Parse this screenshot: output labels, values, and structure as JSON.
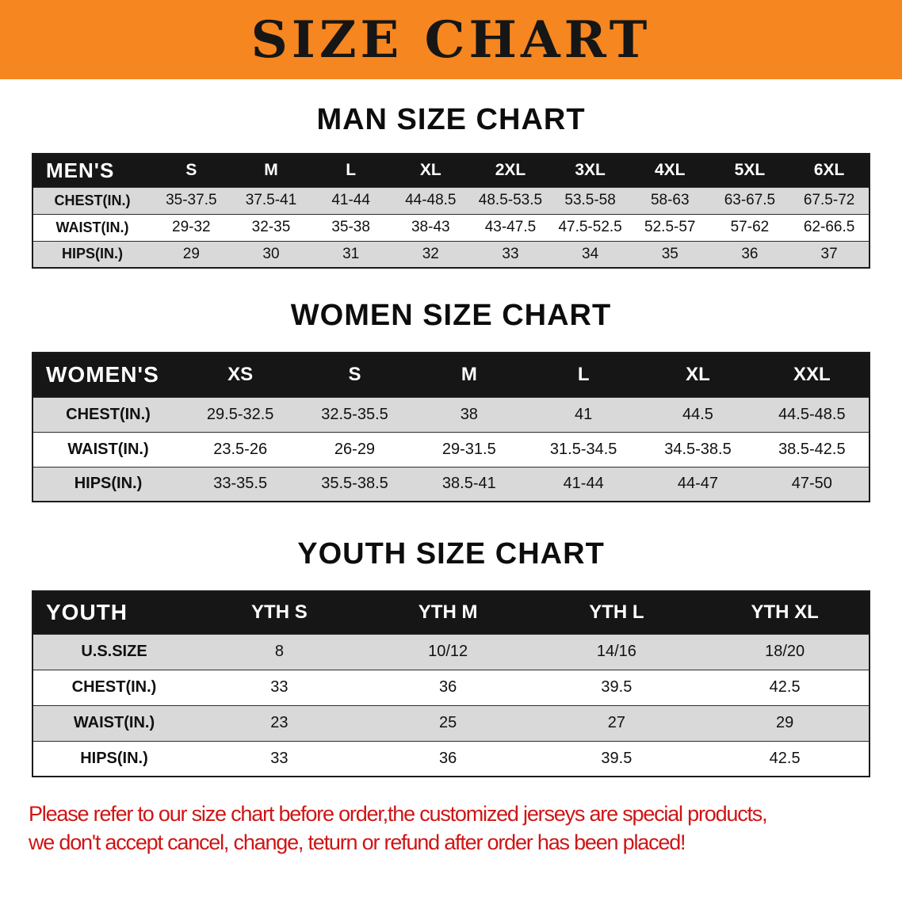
{
  "title": "SIZE CHART",
  "banner": {
    "background_color": "#f6861f",
    "text_color": "#161616"
  },
  "chart_data": [
    {
      "type": "table",
      "title": "MAN SIZE CHART",
      "header": [
        "MEN'S",
        "S",
        "M",
        "L",
        "XL",
        "2XL",
        "3XL",
        "4XL",
        "5XL",
        "6XL"
      ],
      "rows": [
        [
          "CHEST(IN.)",
          "35-37.5",
          "37.5-41",
          "41-44",
          "44-48.5",
          "48.5-53.5",
          "53.5-58",
          "58-63",
          "63-67.5",
          "67.5-72"
        ],
        [
          "WAIST(IN.)",
          "29-32",
          "32-35",
          "35-38",
          "38-43",
          "43-47.5",
          "47.5-52.5",
          "52.5-57",
          "57-62",
          "62-66.5"
        ],
        [
          "HIPS(IN.)",
          "29",
          "30",
          "31",
          "32",
          "33",
          "34",
          "35",
          "36",
          "37"
        ]
      ]
    },
    {
      "type": "table",
      "title": "WOMEN SIZE CHART",
      "header": [
        "WOMEN'S",
        "XS",
        "S",
        "M",
        "L",
        "XL",
        "XXL"
      ],
      "rows": [
        [
          "CHEST(IN.)",
          "29.5-32.5",
          "32.5-35.5",
          "38",
          "41",
          "44.5",
          "44.5-48.5"
        ],
        [
          "WAIST(IN.)",
          "23.5-26",
          "26-29",
          "29-31.5",
          "31.5-34.5",
          "34.5-38.5",
          "38.5-42.5"
        ],
        [
          "HIPS(IN.)",
          "33-35.5",
          "35.5-38.5",
          "38.5-41",
          "41-44",
          "44-47",
          "47-50"
        ]
      ]
    },
    {
      "type": "table",
      "title": "YOUTH SIZE CHART",
      "header": [
        "YOUTH",
        "YTH S",
        "YTH M",
        "YTH L",
        "YTH XL"
      ],
      "rows": [
        [
          "U.S.SIZE",
          "8",
          "10/12",
          "14/16",
          "18/20"
        ],
        [
          "CHEST(IN.)",
          "33",
          "36",
          "39.5",
          "42.5"
        ],
        [
          "WAIST(IN.)",
          "23",
          "25",
          "27",
          "29"
        ],
        [
          "HIPS(IN.)",
          "33",
          "36",
          "39.5",
          "42.5"
        ]
      ]
    }
  ],
  "disclaimer": {
    "line1": "Please refer to our size chart before order,the customized jerseys are special products,",
    "line2": "we don't accept cancel, change, teturn or refund after order has been placed!",
    "text_color": "#cf1515"
  }
}
